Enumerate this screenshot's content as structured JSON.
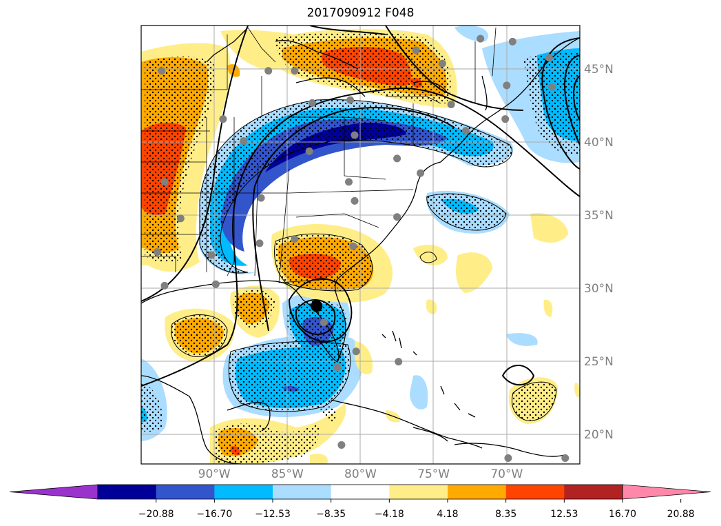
{
  "title": "2017090912 F048",
  "map": {
    "projection": "plate-carree",
    "lon_range": [
      -95.0,
      -65.0
    ],
    "lat_range": [
      18.0,
      48.0
    ],
    "gridlines": true,
    "lon_ticks": [
      {
        "value": -90,
        "label": "90°W"
      },
      {
        "value": -85,
        "label": "85°W"
      },
      {
        "value": -80,
        "label": "80°W"
      },
      {
        "value": -75,
        "label": "75°W"
      },
      {
        "value": -70,
        "label": "70°W"
      }
    ],
    "lat_ticks": [
      {
        "value": 45,
        "label": "45°N"
      },
      {
        "value": 40,
        "label": "40°N"
      },
      {
        "value": 35,
        "label": "35°N"
      },
      {
        "value": 30,
        "label": "30°N"
      },
      {
        "value": 25,
        "label": "25°N"
      },
      {
        "value": 20,
        "label": "20°N"
      }
    ],
    "storm_center": {
      "lon": -83.0,
      "lat": 28.8,
      "color": "#000000"
    },
    "stations_color": "#808080",
    "stations": [
      [
        -93.6,
        44.9
      ],
      [
        -86.3,
        44.9
      ],
      [
        -84.5,
        44.9
      ],
      [
        -83.3,
        42.7
      ],
      [
        -80.7,
        42.9
      ],
      [
        -76.2,
        46.3
      ],
      [
        -74.4,
        45.4
      ],
      [
        -73.8,
        42.6
      ],
      [
        -71.8,
        47.1
      ],
      [
        -69.6,
        46.9
      ],
      [
        -67.1,
        45.8
      ],
      [
        -66.9,
        43.8
      ],
      [
        -70.0,
        43.9
      ],
      [
        -70.1,
        41.6
      ],
      [
        -72.8,
        40.8
      ],
      [
        -77.5,
        38.9
      ],
      [
        -75.9,
        37.9
      ],
      [
        -77.5,
        34.9
      ],
      [
        -80.4,
        40.5
      ],
      [
        -83.5,
        39.4
      ],
      [
        -80.8,
        37.3
      ],
      [
        -80.4,
        36.0
      ],
      [
        -86.8,
        36.2
      ],
      [
        -88.0,
        40.1
      ],
      [
        -89.4,
        41.6
      ],
      [
        -93.4,
        37.3
      ],
      [
        -92.3,
        34.8
      ],
      [
        -93.9,
        32.5
      ],
      [
        -93.4,
        30.2
      ],
      [
        -90.2,
        32.3
      ],
      [
        -89.9,
        30.3
      ],
      [
        -86.9,
        33.1
      ],
      [
        -84.5,
        33.4
      ],
      [
        -80.5,
        32.9
      ],
      [
        -82.5,
        27.7
      ],
      [
        -80.3,
        25.7
      ],
      [
        -81.6,
        24.6
      ],
      [
        -77.4,
        25.0
      ],
      [
        -81.3,
        19.3
      ],
      [
        -69.9,
        18.4
      ],
      [
        -66.0,
        18.4
      ]
    ]
  },
  "colorbar": {
    "extend": "both",
    "colors": [
      "#9933cc",
      "#000099",
      "#3355cc",
      "#00bbff",
      "#aaddff",
      "#ffffff",
      "#ffee88",
      "#ffaa00",
      "#ff4400",
      "#b22222",
      "#ff88aa"
    ],
    "ticks": [
      "−20.88",
      "−16.70",
      "−12.53",
      "−8.35",
      "−4.18",
      "4.18",
      "8.35",
      "12.53",
      "16.70",
      "20.88"
    ]
  }
}
